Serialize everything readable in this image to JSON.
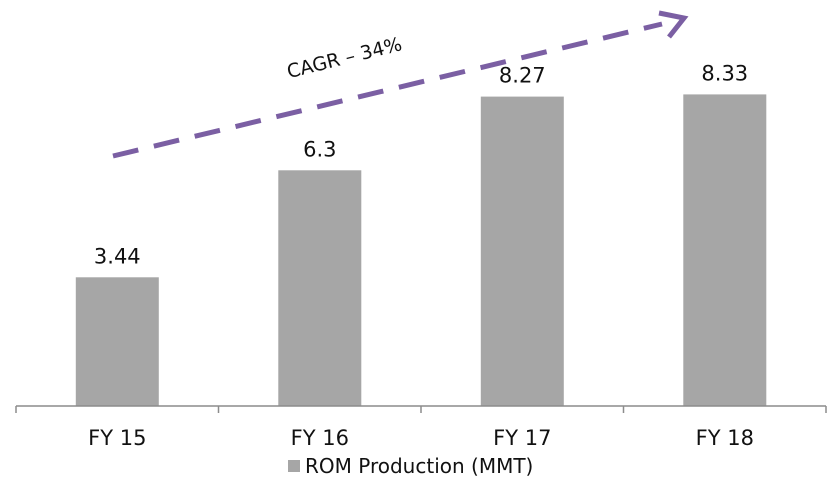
{
  "chart_data": {
    "type": "bar",
    "categories": [
      "FY 15",
      "FY 16",
      "FY 17",
      "FY 18"
    ],
    "series": [
      {
        "name": "ROM Production (MMT)",
        "values": [
          3.44,
          6.3,
          8.27,
          8.33
        ],
        "labels": [
          "3.44",
          "6.3",
          "8.27",
          "8.33"
        ]
      }
    ],
    "ylim": [
      0,
      10.8
    ],
    "grid": false,
    "legend": "bottom",
    "annotation": {
      "text": "CAGR – 34%",
      "type": "dashed-arrow"
    },
    "colors": {
      "bar": "#a6a6a6",
      "arrow": "#7b5fa3",
      "axis": "#8c8c8c",
      "text": "#111111"
    }
  }
}
